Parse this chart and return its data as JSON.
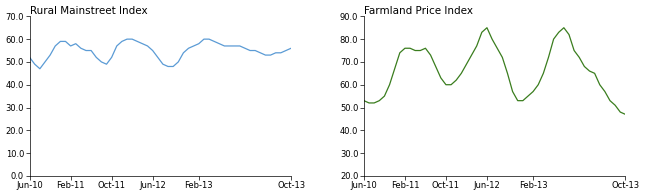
{
  "title1": "Rural Mainstreet Index",
  "title2": "Farmland Price Index",
  "line1_color": "#5B9BD5",
  "line2_color": "#3A7D1E",
  "ylim1": [
    0.0,
    70.0
  ],
  "ylim2": [
    20.0,
    90.0
  ],
  "yticks1": [
    0.0,
    10.0,
    20.0,
    30.0,
    40.0,
    50.0,
    60.0,
    70.0
  ],
  "yticks2": [
    20.0,
    30.0,
    40.0,
    50.0,
    60.0,
    70.0,
    80.0,
    90.0
  ],
  "xtick_labels": [
    "Jun-10",
    "Feb-11",
    "Oct-11",
    "Jun-12",
    "Feb-13",
    "Oct-13"
  ],
  "rural_data": [
    52,
    49,
    47,
    50,
    53,
    57,
    59,
    59,
    57,
    58,
    56,
    55,
    55,
    52,
    50,
    49,
    52,
    57,
    59,
    60,
    60,
    59,
    58,
    57,
    55,
    52,
    49,
    48,
    48,
    50,
    54,
    56,
    57,
    58,
    60,
    60,
    59,
    58,
    57,
    57,
    57,
    57,
    56,
    55,
    55,
    54,
    53,
    53,
    54,
    54,
    55,
    56
  ],
  "farmland_data": [
    53,
    52,
    52,
    53,
    55,
    60,
    67,
    74,
    76,
    76,
    75,
    75,
    76,
    73,
    68,
    63,
    60,
    60,
    62,
    65,
    69,
    73,
    77,
    83,
    85,
    80,
    76,
    72,
    65,
    57,
    53,
    53,
    55,
    57,
    60,
    65,
    72,
    80,
    83,
    85,
    82,
    75,
    72,
    68,
    66,
    65,
    60,
    57,
    53,
    51,
    48,
    47
  ],
  "tick_indices": [
    0,
    8,
    16,
    24,
    33,
    51
  ],
  "n_points": 52
}
